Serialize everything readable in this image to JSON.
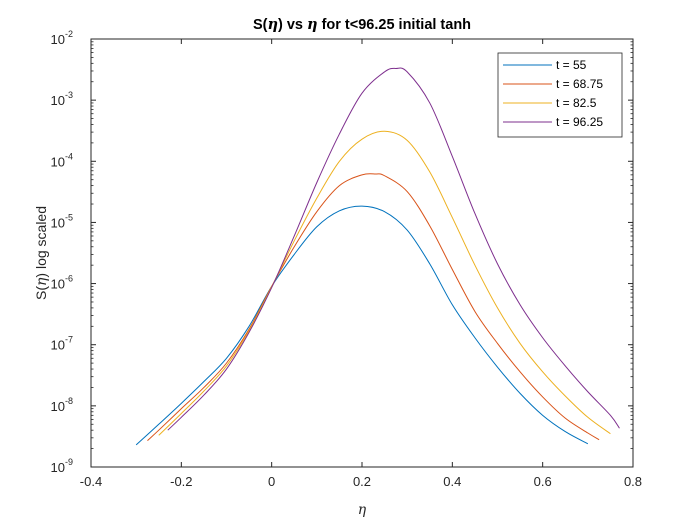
{
  "chart_data": {
    "type": "line",
    "title_parts": [
      "S(",
      "η",
      ") vs ",
      "η",
      " for t<96.25 initial tanh"
    ],
    "xlabel": "η",
    "ylabel_parts": [
      "S(",
      "η",
      ") log scaled"
    ],
    "xlim": [
      -0.4,
      0.8
    ],
    "ylim": [
      1e-09,
      0.01
    ],
    "yscale": "log",
    "grid": false,
    "legend_position": "top-right",
    "x_ticks": [
      -0.4,
      -0.2,
      0,
      0.2,
      0.4,
      0.6,
      0.8
    ],
    "x_tick_labels": [
      "-0.4",
      "-0.2",
      "0",
      "0.2",
      "0.4",
      "0.6",
      "0.8"
    ],
    "y_ticks": [
      -9,
      -8,
      -7,
      -6,
      -5,
      -4,
      -3,
      -2
    ],
    "y_tick_base": "10",
    "y_tick_exponents": [
      "-9",
      "-8",
      "-7",
      "-6",
      "-5",
      "-4",
      "-3",
      "-2"
    ],
    "series": [
      {
        "name": "t = 55",
        "color": "#0072BD",
        "x": [
          -0.3,
          -0.25,
          -0.2,
          -0.15,
          -0.1,
          -0.05,
          0,
          0.05,
          0.1,
          0.15,
          0.2,
          0.25,
          0.3,
          0.35,
          0.4,
          0.45,
          0.5,
          0.55,
          0.6,
          0.65,
          0.7
        ],
        "y": [
          2.3e-09,
          5e-09,
          1.1e-08,
          2.5e-08,
          6e-08,
          2e-07,
          9e-07,
          3e-06,
          8.5e-06,
          1.55e-05,
          1.85e-05,
          1.5e-05,
          7.5e-06,
          2.1e-06,
          4.5e-07,
          1.3e-07,
          4.3e-08,
          1.6e-08,
          7e-09,
          3.8e-09,
          2.4e-09
        ]
      },
      {
        "name": "t = 68.75",
        "color": "#D95319",
        "x": [
          -0.275,
          -0.25,
          -0.2,
          -0.15,
          -0.1,
          -0.05,
          0,
          0.05,
          0.1,
          0.15,
          0.2,
          0.23,
          0.25,
          0.3,
          0.35,
          0.4,
          0.45,
          0.5,
          0.55,
          0.6,
          0.65,
          0.7,
          0.725
        ],
        "y": [
          2.7e-09,
          4e-09,
          9e-09,
          2e-08,
          5e-08,
          1.8e-07,
          9e-07,
          4e-06,
          1.5e-05,
          4e-05,
          6e-05,
          6.2e-05,
          5.8e-05,
          3.2e-05,
          8.8e-06,
          1.7e-06,
          3.5e-07,
          1.05e-07,
          3.6e-08,
          1.4e-08,
          6.3e-09,
          3.6e-09,
          2.8e-09
        ]
      },
      {
        "name": "t = 82.5",
        "color": "#EDB120",
        "x": [
          -0.25,
          -0.2,
          -0.15,
          -0.1,
          -0.05,
          0,
          0.05,
          0.1,
          0.15,
          0.2,
          0.25,
          0.3,
          0.35,
          0.4,
          0.45,
          0.5,
          0.55,
          0.6,
          0.65,
          0.7,
          0.75
        ],
        "y": [
          3.3e-09,
          7.5e-09,
          1.75e-08,
          4.5e-08,
          1.7e-07,
          8.8e-07,
          5e-06,
          2.5e-05,
          0.0001,
          0.00023,
          0.00031,
          0.00022,
          6.7e-05,
          1.2e-05,
          2e-06,
          4e-07,
          1.05e-07,
          3.6e-08,
          1.45e-08,
          6.5e-09,
          3.5e-09
        ]
      },
      {
        "name": "t = 96.25",
        "color": "#7E2F8E",
        "x": [
          -0.23,
          -0.2,
          -0.15,
          -0.1,
          -0.05,
          0,
          0.05,
          0.1,
          0.15,
          0.2,
          0.25,
          0.275,
          0.3,
          0.35,
          0.4,
          0.45,
          0.5,
          0.55,
          0.6,
          0.65,
          0.7,
          0.75,
          0.77
        ],
        "y": [
          4e-09,
          6.5e-09,
          1.5e-08,
          4e-08,
          1.6e-07,
          8.6e-07,
          6e-06,
          4.5e-05,
          0.00028,
          0.0013,
          0.0029,
          0.0033,
          0.0029,
          0.0009,
          0.00012,
          1.4e-05,
          2.1e-06,
          4.5e-07,
          1.3e-07,
          4.5e-08,
          1.7e-08,
          7e-09,
          4.3e-09
        ]
      }
    ]
  }
}
